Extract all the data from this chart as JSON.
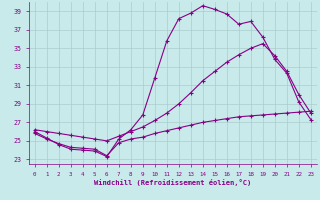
{
  "xlabel": "Windchill (Refroidissement éolien,°C)",
  "bg_color": "#c8eaea",
  "line_color": "#880088",
  "grid_color": "#aacccc",
  "xlim": [
    -0.5,
    23.5
  ],
  "ylim": [
    22.5,
    40.0
  ],
  "yticks": [
    23,
    25,
    27,
    29,
    31,
    33,
    35,
    37,
    39
  ],
  "xticks": [
    0,
    1,
    2,
    3,
    4,
    5,
    6,
    7,
    8,
    9,
    10,
    11,
    12,
    13,
    14,
    15,
    16,
    17,
    18,
    19,
    20,
    21,
    22,
    23
  ],
  "series1_x": [
    0,
    1,
    2,
    3,
    4,
    5,
    6,
    7,
    8,
    9,
    10,
    11,
    12,
    13,
    14,
    15,
    16,
    17,
    18,
    19,
    20,
    21,
    22,
    23
  ],
  "series1_y": [
    25.8,
    25.2,
    24.7,
    24.3,
    24.2,
    24.1,
    23.4,
    24.8,
    25.2,
    25.4,
    25.8,
    26.1,
    26.4,
    26.7,
    27.0,
    27.2,
    27.4,
    27.6,
    27.7,
    27.8,
    27.9,
    28.0,
    28.1,
    28.2
  ],
  "series2_x": [
    0,
    1,
    2,
    3,
    4,
    5,
    6,
    7,
    8,
    9,
    10,
    11,
    12,
    13,
    14,
    15,
    16,
    17,
    18,
    19,
    20,
    21,
    22,
    23
  ],
  "series2_y": [
    26.0,
    25.3,
    24.6,
    24.1,
    24.0,
    23.9,
    23.3,
    25.2,
    26.2,
    27.8,
    31.8,
    35.8,
    38.2,
    38.8,
    39.6,
    39.2,
    38.7,
    37.6,
    37.9,
    36.2,
    33.8,
    32.3,
    29.2,
    27.3
  ],
  "series3_x": [
    0,
    1,
    2,
    3,
    4,
    5,
    6,
    7,
    8,
    9,
    10,
    11,
    12,
    13,
    14,
    15,
    16,
    17,
    18,
    19,
    20,
    21,
    22,
    23
  ],
  "series3_y": [
    26.2,
    26.0,
    25.8,
    25.6,
    25.4,
    25.2,
    25.0,
    25.5,
    26.0,
    26.5,
    27.2,
    28.0,
    29.0,
    30.2,
    31.5,
    32.5,
    33.5,
    34.3,
    35.0,
    35.5,
    34.2,
    32.5,
    30.0,
    28.0
  ]
}
